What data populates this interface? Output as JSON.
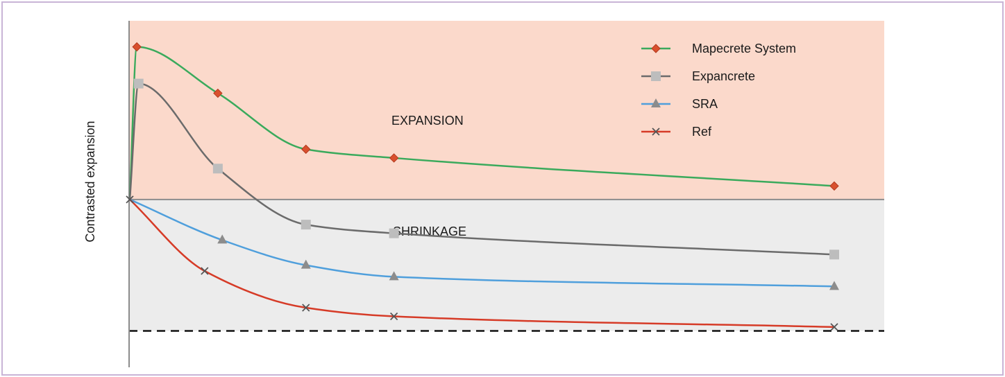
{
  "chart_data": {
    "type": "line",
    "title": "",
    "ylabel": "Contrasted expansion",
    "xlabel": "",
    "regions": {
      "upper": "EXPANSION",
      "lower": "SHRINKAGE"
    },
    "xlim": [
      0,
      8.0
    ],
    "ylim": [
      -1.45,
      1.85
    ],
    "grid": false,
    "legend": "top-right",
    "series": [
      {
        "name": "Mapecrete System",
        "color": "#3aaa5c",
        "marker": "diamond",
        "marker_color": "#d9502e",
        "x": [
          0,
          0.08,
          1,
          2,
          3,
          8
        ],
        "y": [
          0,
          1.58,
          1.1,
          0.52,
          0.43,
          0.14
        ]
      },
      {
        "name": "Expancrete",
        "color": "#6b6b6b",
        "marker": "square",
        "marker_color": "#bdbdbd",
        "x": [
          0,
          0.1,
          1,
          2,
          3,
          8
        ],
        "y": [
          0,
          1.2,
          0.32,
          -0.26,
          -0.35,
          -0.57
        ]
      },
      {
        "name": "SRA",
        "color": "#4f9fdc",
        "marker": "triangle",
        "marker_color": "#8c8c8c",
        "x": [
          0,
          1.05,
          2,
          3,
          8
        ],
        "y": [
          0,
          -0.42,
          -0.68,
          -0.8,
          -0.9
        ]
      },
      {
        "name": "Ref",
        "color": "#d63b27",
        "marker": "x",
        "marker_color": "#555555",
        "x": [
          0,
          0.85,
          2,
          3,
          8
        ],
        "y": [
          0,
          -0.74,
          -1.12,
          -1.21,
          -1.32
        ]
      }
    ],
    "baseline": 0,
    "lower_limit_dashed": -1.36
  }
}
